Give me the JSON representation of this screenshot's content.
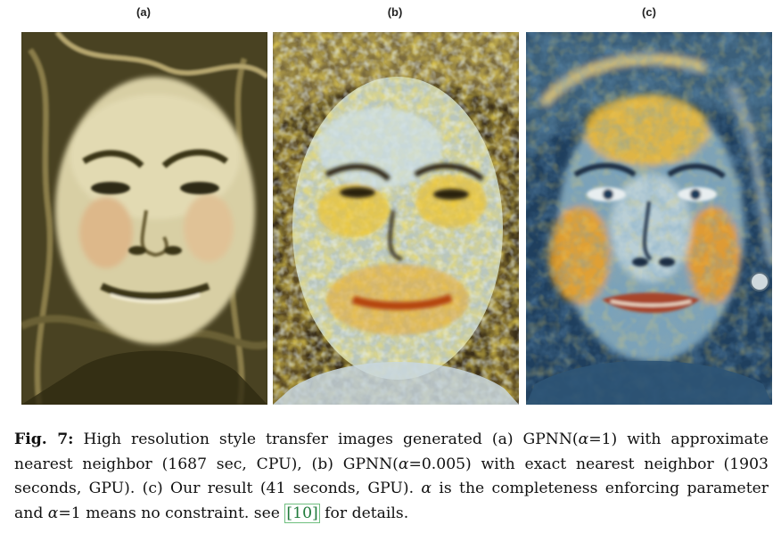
{
  "panels": [
    {
      "label": "(a)",
      "description_icon": "face-painting-muted"
    },
    {
      "label": "(b)",
      "description_icon": "face-painting-yellow-blue-noisy"
    },
    {
      "label": "(c)",
      "description_icon": "face-painting-yellow-blue-detailed"
    }
  ],
  "caption": {
    "fig_label": "Fig. 7:",
    "part1": " High resolution style transfer images generated (a) GPNN(",
    "alpha_symbol": "α",
    "part2": "=1) with approximate nearest neighbor (1687 sec, CPU), (b) GPNN(",
    "part3": "=0.005) with exact nearest neighbor (1903 seconds, GPU). (c) Our result (41 seconds, GPU). ",
    "part4": " is the completeness enforcing parameter and ",
    "part5": "=1 means no constraint. see ",
    "ref": "[10]",
    "part6": " for details."
  },
  "colors": {
    "panel_a_base": "#d9cfa6",
    "panel_a_dark": "#3a3418",
    "panel_b_yellow": "#f2c21a",
    "panel_b_blue": "#c8dce6",
    "panel_c_blue": "#2a5a86",
    "panel_c_orange": "#f0a020",
    "ref_green": "#1f7a3a"
  }
}
